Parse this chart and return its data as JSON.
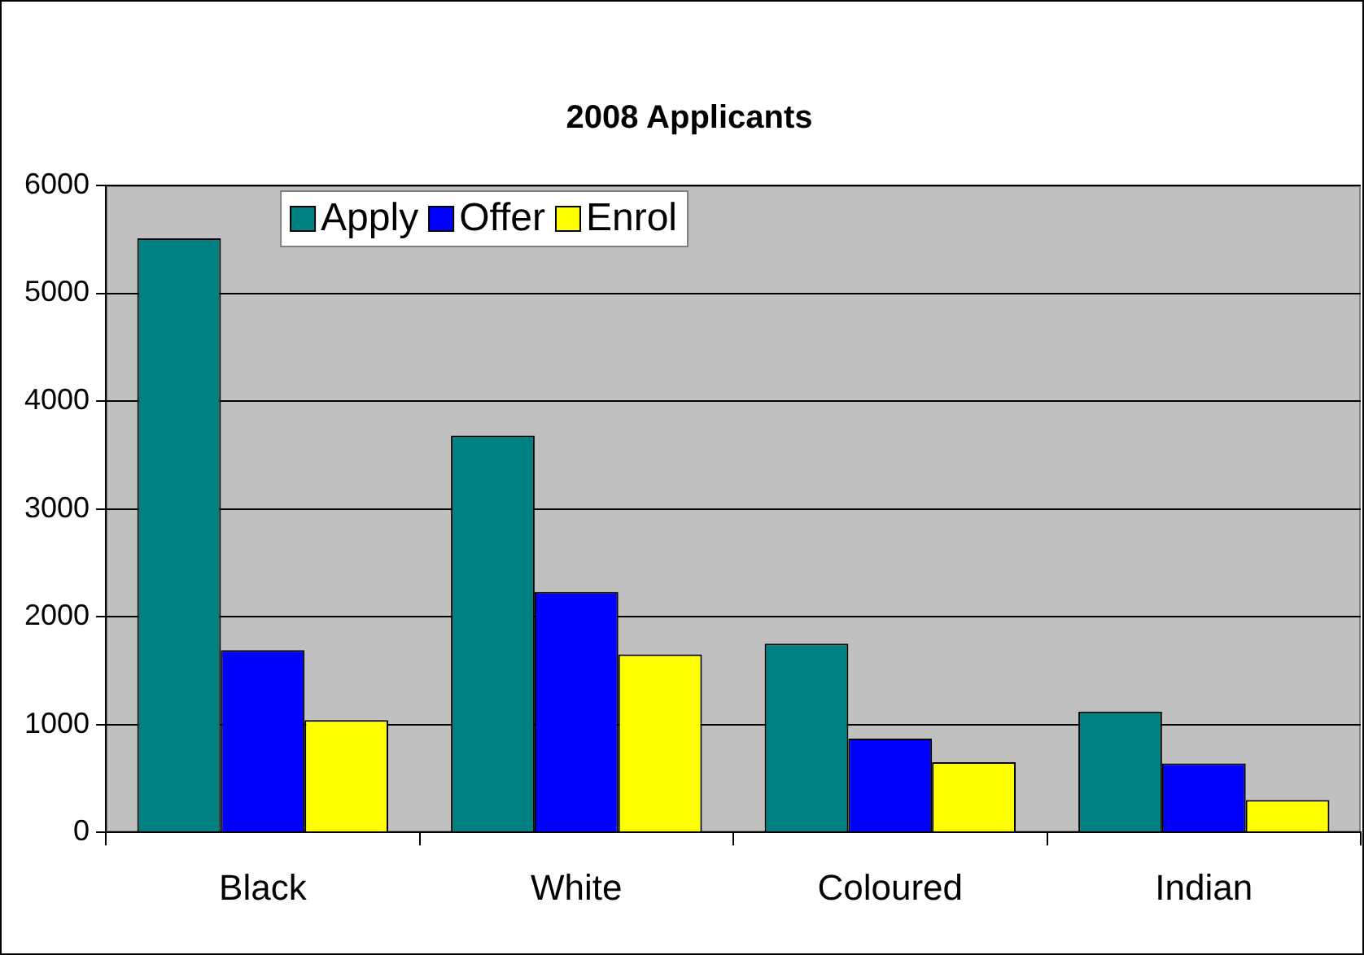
{
  "chart_data": {
    "type": "bar",
    "title": "2008 Applicants",
    "categories": [
      "Black",
      "White",
      "Coloured",
      "Indian"
    ],
    "series": [
      {
        "name": "Apply",
        "color": "#008080",
        "values": [
          5510,
          3680,
          1750,
          1120
        ]
      },
      {
        "name": "Offer",
        "color": "#0000ff",
        "values": [
          1690,
          2230,
          870,
          640
        ]
      },
      {
        "name": "Enrol",
        "color": "#ffff00",
        "values": [
          1040,
          1650,
          650,
          300
        ]
      }
    ],
    "ylim": [
      0,
      6000
    ],
    "yticks": [
      0,
      1000,
      2000,
      3000,
      4000,
      5000,
      6000
    ],
    "grid": "y",
    "legend": "top left"
  }
}
